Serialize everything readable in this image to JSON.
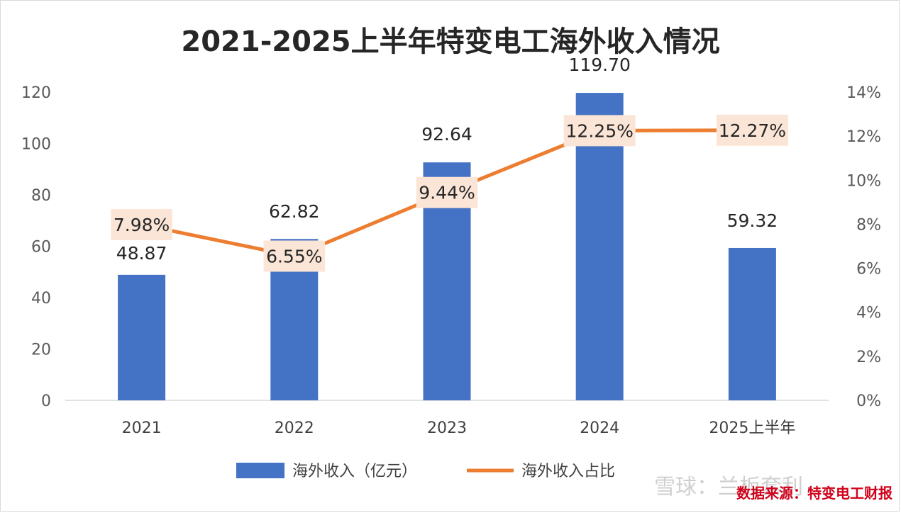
{
  "chart_data": {
    "type": "bar+line",
    "title": "2021-2025上半年特变电工海外收入情况",
    "categories": [
      "2021",
      "2022",
      "2023",
      "2024",
      "2025上半年"
    ],
    "series": [
      {
        "name": "海外收入（亿元）",
        "type": "bar",
        "axis": "left",
        "values": [
          48.87,
          62.82,
          92.64,
          119.7,
          59.32
        ],
        "labels": [
          "48.87",
          "62.82",
          "92.64",
          "119.70",
          "59.32"
        ],
        "color": "#4472c4"
      },
      {
        "name": "海外收入占比",
        "type": "line",
        "axis": "right",
        "values": [
          7.98,
          6.55,
          9.44,
          12.25,
          12.27
        ],
        "labels": [
          "7.98%",
          "6.55%",
          "9.44%",
          "12.25%",
          "12.27%"
        ],
        "color": "#ed7d31",
        "label_bg": "#fbe5d6"
      }
    ],
    "y_left": {
      "ylim": [
        0,
        120
      ],
      "ticks": [
        "0",
        "20",
        "40",
        "60",
        "80",
        "100",
        "120"
      ]
    },
    "y_right": {
      "ylim": [
        0,
        14
      ],
      "ticks": [
        "0%",
        "2%",
        "4%",
        "6%",
        "8%",
        "10%",
        "12%",
        "14%"
      ]
    },
    "legend_position": "bottom-center",
    "grid": false
  },
  "source_note": "数据来源：特变电工财报",
  "watermark": "雪球：兰板套利"
}
